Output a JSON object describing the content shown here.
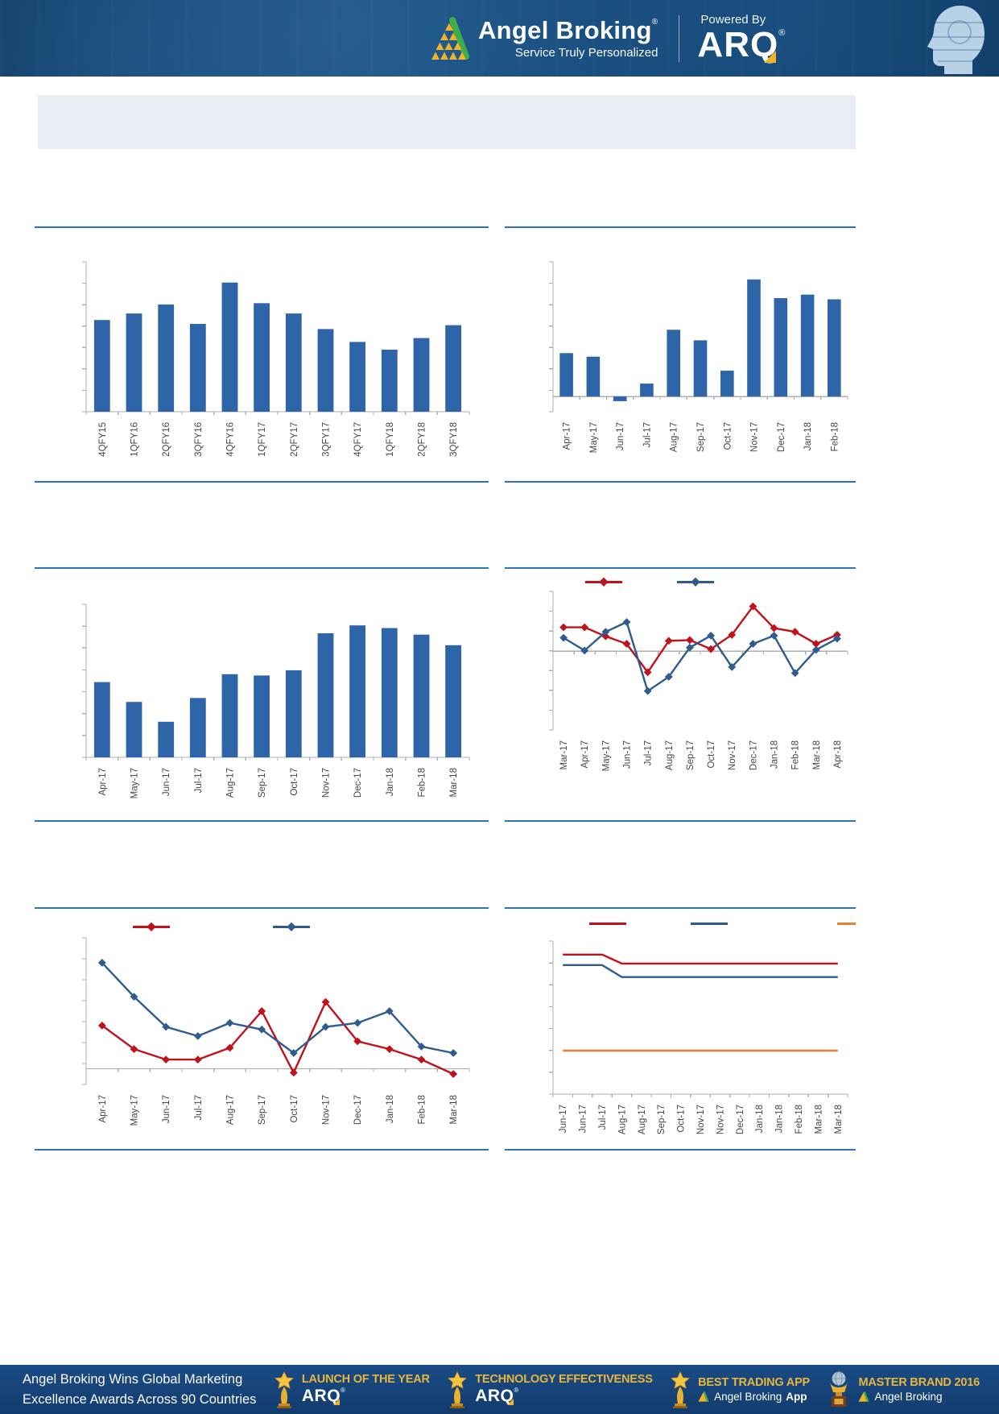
{
  "header": {
    "brand_name": "Angel Broking",
    "brand_reg": "®",
    "tagline": "Service Truly Personalized",
    "powered_by_label": "Powered By",
    "product_name": "ARQ",
    "product_reg": "®"
  },
  "colors": {
    "separator_blue": "#2E75B6",
    "bar_blue": "#2E64A8",
    "line_red": "#C1121C",
    "line_blue": "#2F5B8E",
    "line_orange": "#EE7D30",
    "axis_gray": "#AFAFAF",
    "label_gray": "#474747",
    "banner_bg": "#E9EEF4",
    "header_bg": "#0E4070",
    "footer_bg": "#16437B",
    "gold": "#E7B63C"
  },
  "chart_data": [
    {
      "name": "quarterly-bar-chart",
      "type": "bar",
      "bar_color": "#2E64A8",
      "categories": [
        "4QFY15",
        "1QFY16",
        "2QFY16",
        "3QFY16",
        "4QFY16",
        "1QFY17",
        "2QFY17",
        "3QFY17",
        "4QFY17",
        "1QFY18",
        "2QFY18",
        "3QFY18"
      ],
      "values": [
        71,
        76,
        83,
        68,
        100,
        84,
        76,
        64,
        54,
        48,
        57,
        67
      ],
      "ylim": [
        0,
        116
      ],
      "yticks": 7,
      "grid": false,
      "legend": false
    },
    {
      "name": "monthly-bar-chart-flows",
      "type": "bar",
      "bar_color": "#2E64A8",
      "categories": [
        "Apr-17",
        "May-17",
        "Jun-17",
        "Jul-17",
        "Aug-17",
        "Sep-17",
        "Oct-17",
        "Nov-17",
        "Dec-17",
        "Jan-18",
        "Feb-18"
      ],
      "values": [
        37,
        34,
        -4,
        11,
        57,
        48,
        22,
        100,
        84,
        87,
        83
      ],
      "ylim": [
        -13,
        115
      ],
      "yticks": 7,
      "grid": false,
      "legend": false
    },
    {
      "name": "monthly-bar-chart-volumes",
      "type": "bar",
      "bar_color": "#2E64A8",
      "categories": [
        "Apr-17",
        "May-17",
        "Jun-17",
        "Jul-17",
        "Aug-17",
        "Sep-17",
        "Oct-17",
        "Nov-17",
        "Dec-17",
        "Jan-18",
        "Feb-18",
        "Mar-18"
      ],
      "values": [
        57,
        42,
        27,
        45,
        63,
        62,
        66,
        94,
        100,
        98,
        93,
        85
      ],
      "ylim": [
        0,
        116
      ],
      "yticks": 7,
      "grid": false,
      "legend": false
    },
    {
      "name": "dual-line-chart-monthly-returns",
      "type": "line",
      "categories": [
        "Mar-17",
        "Apr-17",
        "May-17",
        "Jun-17",
        "Jul-17",
        "Aug-17",
        "Sep-17",
        "Oct-17",
        "Nov-17",
        "Dec-17",
        "Jan-18",
        "Feb-18",
        "Mar-18",
        "Apr-18"
      ],
      "series": [
        {
          "name": "red-series",
          "color": "#C1121C",
          "marker": "diamond",
          "values": [
            0.32,
            0.32,
            0.2,
            0.1,
            -0.28,
            0.14,
            0.15,
            0.03,
            0.22,
            0.6,
            0.31,
            0.26,
            0.1,
            0.22
          ]
        },
        {
          "name": "blue-series",
          "color": "#2F5B8E",
          "marker": "diamond",
          "values": [
            0.18,
            0.01,
            0.26,
            0.39,
            -0.53,
            -0.34,
            0.05,
            0.21,
            -0.21,
            0.1,
            0.21,
            -0.29,
            0.02,
            0.17
          ]
        }
      ],
      "ylim": [
        -1.05,
        0.8
      ],
      "yticks": 7,
      "grid": false,
      "legend": true,
      "legend_position": "top"
    },
    {
      "name": "dual-line-chart-yields",
      "type": "line",
      "categories": [
        "Apr-17",
        "May-17",
        "Jun-17",
        "Jul-17",
        "Aug-17",
        "Sep-17",
        "Oct-17",
        "Nov-17",
        "Dec-17",
        "Jan-18",
        "Feb-18",
        "Mar-18"
      ],
      "series": [
        {
          "name": "red-series",
          "color": "#C1121C",
          "marker": "diamond",
          "values": [
            0.33,
            0.15,
            0.07,
            0.07,
            0.16,
            0.44,
            -0.03,
            0.51,
            0.21,
            0.15,
            0.07,
            -0.04
          ]
        },
        {
          "name": "blue-series",
          "color": "#2F5B8E",
          "marker": "diamond",
          "values": [
            0.81,
            0.55,
            0.32,
            0.25,
            0.35,
            0.3,
            0.12,
            0.32,
            0.35,
            0.44,
            0.17,
            0.12
          ]
        }
      ],
      "ylim": [
        -0.12,
        1.0
      ],
      "yticks": 7,
      "grid": false,
      "legend": true,
      "legend_position": "top"
    },
    {
      "name": "triple-line-chart-rates",
      "type": "line",
      "categories": [
        "Jun-17",
        "Jun-17",
        "Jul-17",
        "Aug-17",
        "Aug-17",
        "Sep-17",
        "Oct-17",
        "Nov-17",
        "Nov-17",
        "Dec-17",
        "Jan-18",
        "Jan-18",
        "Feb-18",
        "Mar-18",
        "Mar-18"
      ],
      "series": [
        {
          "name": "red-series",
          "color": "#C1121C",
          "marker": null,
          "values": [
            0.93,
            0.93,
            0.93,
            0.87,
            0.87,
            0.87,
            0.87,
            0.87,
            0.87,
            0.87,
            0.87,
            0.87,
            0.87,
            0.87,
            0.87
          ]
        },
        {
          "name": "blue-series",
          "color": "#2F5B8E",
          "marker": null,
          "values": [
            0.86,
            0.86,
            0.86,
            0.78,
            0.78,
            0.78,
            0.78,
            0.78,
            0.78,
            0.78,
            0.78,
            0.78,
            0.78,
            0.78,
            0.78
          ]
        },
        {
          "name": "orange-series",
          "color": "#EE7D30",
          "marker": null,
          "values": [
            0.29,
            0.29,
            0.29,
            0.29,
            0.29,
            0.29,
            0.29,
            0.29,
            0.29,
            0.29,
            0.29,
            0.29,
            0.29,
            0.29,
            0.29
          ]
        }
      ],
      "ylim": [
        0,
        1.02
      ],
      "yticks": 7,
      "grid": false,
      "legend": true,
      "legend_position": "top"
    }
  ],
  "footer": {
    "headline_line1": "Angel Broking Wins Global Marketing",
    "headline_line2": "Excellence Awards Across 90 Countries",
    "awards": [
      {
        "title": "LAUNCH OF THE YEAR",
        "brand": "ARQ",
        "brand_reg": "®"
      },
      {
        "title": "TECHNOLOGY EFFECTIVENESS",
        "brand": "ARQ",
        "brand_reg": "®"
      },
      {
        "title": "BEST TRADING APP",
        "brand": "Angel Broking",
        "brand_bold": "App"
      },
      {
        "title": "MASTER BRAND 2016",
        "brand": "Angel Broking"
      }
    ]
  }
}
